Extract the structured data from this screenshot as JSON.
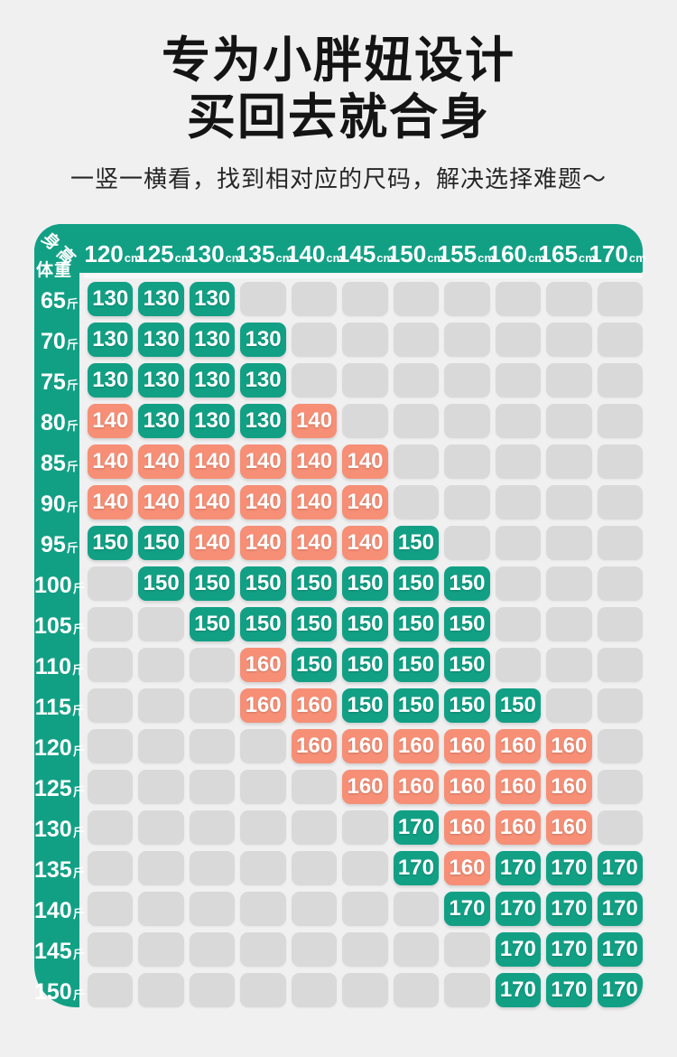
{
  "page": {
    "title_line1": "专为小胖妞设计",
    "title_line2": "买回去就合身",
    "subtitle": "一竖一横看，找到相对应的尺码，解决选择难题～"
  },
  "colors": {
    "green": "#12a085",
    "salmon": "#f68f76",
    "empty_cell": "#d9d9da",
    "background": "#f0f0f1",
    "text_on_color": "#ffffff",
    "title_text": "#141414"
  },
  "chart_data": {
    "type": "heatmap",
    "title": "专为小胖妞设计 买回去就合身",
    "subtitle": "一竖一横看，找到相对应的尺码，解决选择难题～",
    "x_axis_label": "身高",
    "y_axis_label": "体重",
    "x_unit": "cm",
    "y_unit": "斤",
    "tone_legend": {
      "g": "green",
      "s": "salmon",
      "": "empty"
    },
    "columns": [
      "120",
      "125",
      "130",
      "135",
      "140",
      "145",
      "150",
      "155",
      "160",
      "165",
      "170"
    ],
    "rows": [
      {
        "weight": "65",
        "cells": [
          "130g",
          "130g",
          "130g",
          "",
          "",
          "",
          "",
          "",
          "",
          "",
          ""
        ]
      },
      {
        "weight": "70",
        "cells": [
          "130g",
          "130g",
          "130g",
          "130g",
          "",
          "",
          "",
          "",
          "",
          "",
          ""
        ]
      },
      {
        "weight": "75",
        "cells": [
          "130g",
          "130g",
          "130g",
          "130g",
          "",
          "",
          "",
          "",
          "",
          "",
          ""
        ]
      },
      {
        "weight": "80",
        "cells": [
          "140s",
          "130g",
          "130g",
          "130g",
          "140s",
          "",
          "",
          "",
          "",
          "",
          ""
        ]
      },
      {
        "weight": "85",
        "cells": [
          "140s",
          "140s",
          "140s",
          "140s",
          "140s",
          "140s",
          "",
          "",
          "",
          "",
          ""
        ]
      },
      {
        "weight": "90",
        "cells": [
          "140s",
          "140s",
          "140s",
          "140s",
          "140s",
          "140s",
          "",
          "",
          "",
          "",
          ""
        ]
      },
      {
        "weight": "95",
        "cells": [
          "150g",
          "150g",
          "140s",
          "140s",
          "140s",
          "140s",
          "150g",
          "",
          "",
          "",
          ""
        ]
      },
      {
        "weight": "100",
        "cells": [
          "",
          "150g",
          "150g",
          "150g",
          "150g",
          "150g",
          "150g",
          "150g",
          "",
          "",
          ""
        ]
      },
      {
        "weight": "105",
        "cells": [
          "",
          "",
          "150g",
          "150g",
          "150g",
          "150g",
          "150g",
          "150g",
          "",
          "",
          ""
        ]
      },
      {
        "weight": "110",
        "cells": [
          "",
          "",
          "",
          "160s",
          "150g",
          "150g",
          "150g",
          "150g",
          "",
          "",
          ""
        ]
      },
      {
        "weight": "115",
        "cells": [
          "",
          "",
          "",
          "160s",
          "160s",
          "150g",
          "150g",
          "150g",
          "150g",
          "",
          ""
        ]
      },
      {
        "weight": "120",
        "cells": [
          "",
          "",
          "",
          "",
          "160s",
          "160s",
          "160s",
          "160s",
          "160s",
          "160s",
          ""
        ]
      },
      {
        "weight": "125",
        "cells": [
          "",
          "",
          "",
          "",
          "",
          "160s",
          "160s",
          "160s",
          "160s",
          "160s",
          ""
        ]
      },
      {
        "weight": "130",
        "cells": [
          "",
          "",
          "",
          "",
          "",
          "",
          "170g",
          "160s",
          "160s",
          "160s",
          ""
        ]
      },
      {
        "weight": "135",
        "cells": [
          "",
          "",
          "",
          "",
          "",
          "",
          "170g",
          "160s",
          "170g",
          "170g",
          "170g"
        ]
      },
      {
        "weight": "140",
        "cells": [
          "",
          "",
          "",
          "",
          "",
          "",
          "",
          "170g",
          "170g",
          "170g",
          "170g"
        ]
      },
      {
        "weight": "145",
        "cells": [
          "",
          "",
          "",
          "",
          "",
          "",
          "",
          "",
          "170g",
          "170g",
          "170g"
        ]
      },
      {
        "weight": "150",
        "cells": [
          "",
          "",
          "",
          "",
          "",
          "",
          "",
          "",
          "170g",
          "170g",
          "170g"
        ]
      }
    ]
  }
}
